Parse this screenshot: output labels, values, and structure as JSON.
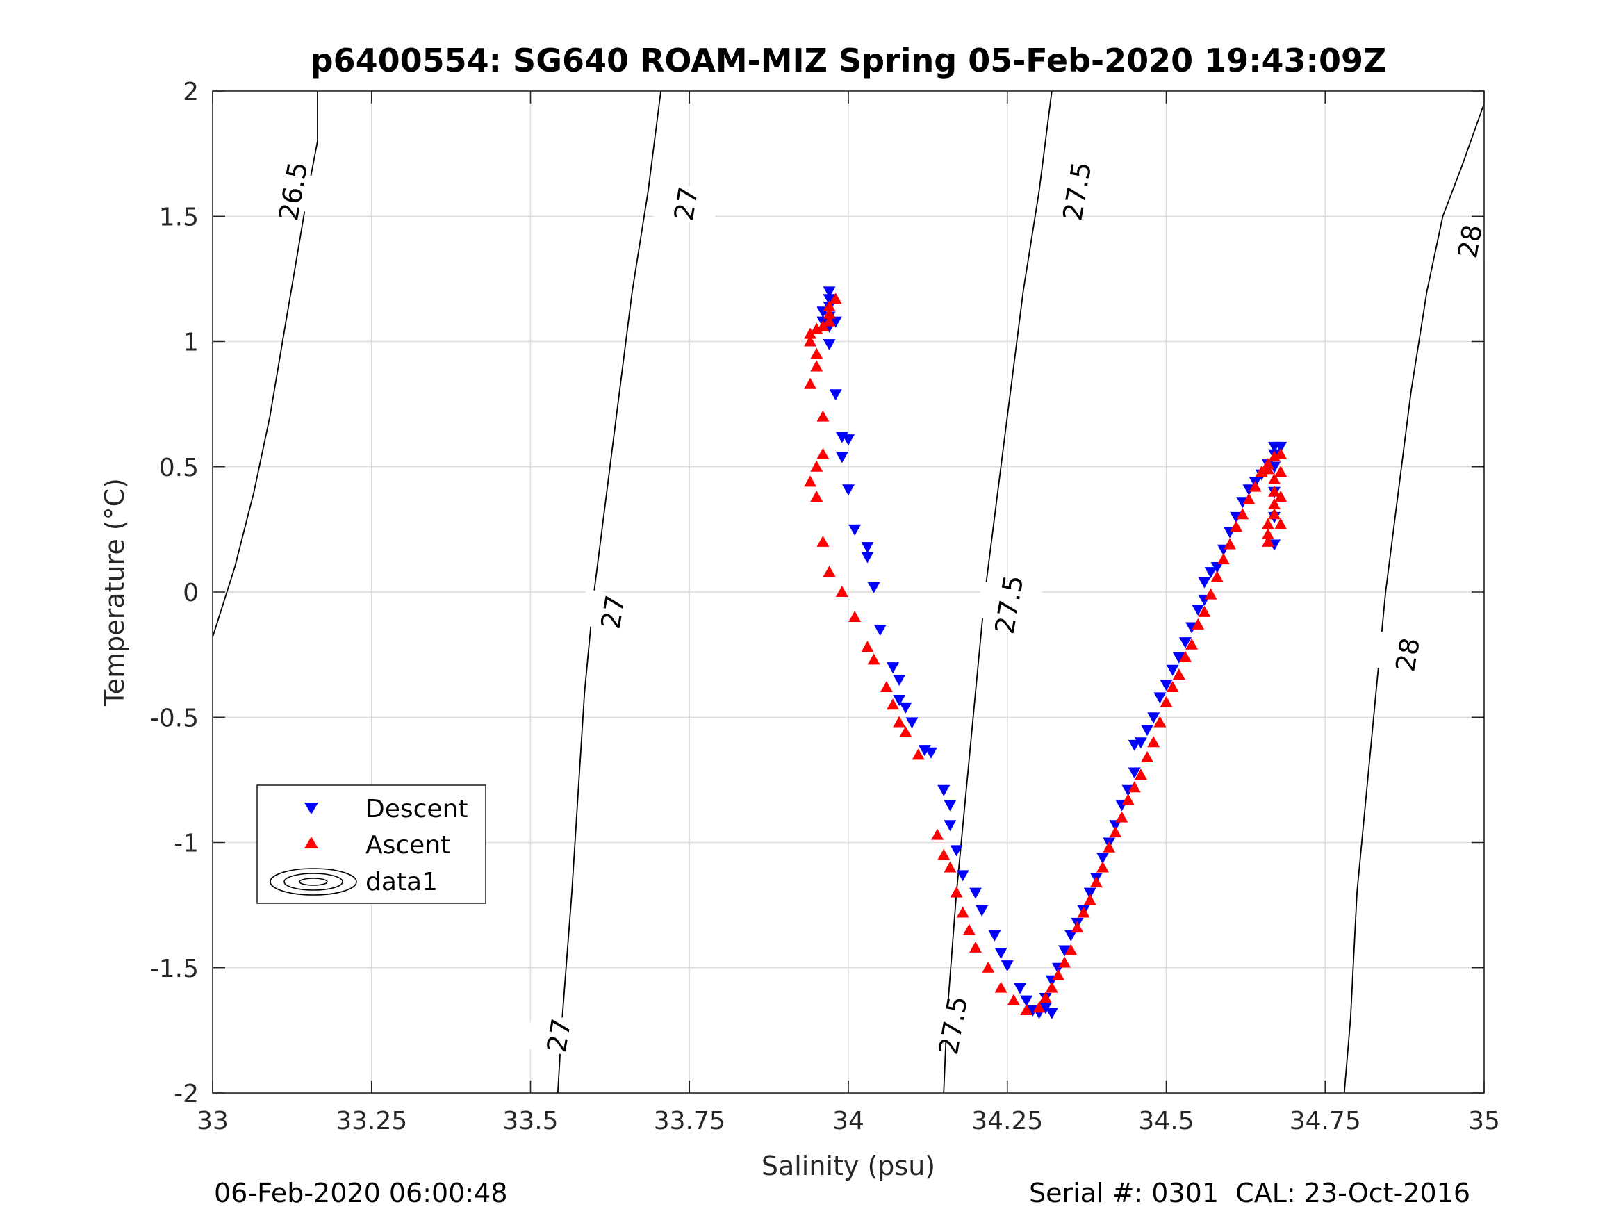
{
  "chart_data": {
    "type": "scatter",
    "title": "p6400554: SG640 ROAM-MIZ Spring 05-Feb-2020 19:43:09Z",
    "xlabel": "Salinity (psu)",
    "ylabel": "Temperature (°C)",
    "xlim": [
      33,
      35
    ],
    "ylim": [
      -2,
      2
    ],
    "x_ticks": [
      33,
      33.25,
      33.5,
      33.75,
      34,
      34.25,
      34.5,
      34.75,
      35
    ],
    "x_tick_labels": [
      "33",
      "33.25",
      "33.5",
      "33.75",
      "34",
      "34.25",
      "34.5",
      "34.75",
      "35"
    ],
    "y_ticks": [
      -2,
      -1.5,
      -1,
      -0.5,
      0,
      0.5,
      1,
      1.5,
      2
    ],
    "y_tick_labels": [
      "-2",
      "-1.5",
      "-1",
      "-0.5",
      "0",
      "0.5",
      "1",
      "1.5",
      "2"
    ],
    "grid": true,
    "legend_position": "lower-left",
    "series": [
      {
        "name": "Descent",
        "marker": "triangle-down",
        "color": "#0000ff",
        "points": [
          [
            33.97,
            1.2
          ],
          [
            33.97,
            1.17
          ],
          [
            33.97,
            1.14
          ],
          [
            33.96,
            1.12
          ],
          [
            33.97,
            1.1
          ],
          [
            33.96,
            1.08
          ],
          [
            33.97,
            1.06
          ],
          [
            33.98,
            1.08
          ],
          [
            33.97,
            0.99
          ],
          [
            33.98,
            0.79
          ],
          [
            33.99,
            0.62
          ],
          [
            34.0,
            0.61
          ],
          [
            33.99,
            0.54
          ],
          [
            34.0,
            0.41
          ],
          [
            34.01,
            0.25
          ],
          [
            34.03,
            0.18
          ],
          [
            34.03,
            0.14
          ],
          [
            34.04,
            0.02
          ],
          [
            34.05,
            -0.15
          ],
          [
            34.07,
            -0.3
          ],
          [
            34.08,
            -0.35
          ],
          [
            34.08,
            -0.43
          ],
          [
            34.09,
            -0.46
          ],
          [
            34.1,
            -0.52
          ],
          [
            34.12,
            -0.63
          ],
          [
            34.13,
            -0.64
          ],
          [
            34.15,
            -0.79
          ],
          [
            34.16,
            -0.85
          ],
          [
            34.16,
            -0.93
          ],
          [
            34.17,
            -1.03
          ],
          [
            34.18,
            -1.13
          ],
          [
            34.2,
            -1.2
          ],
          [
            34.21,
            -1.27
          ],
          [
            34.23,
            -1.37
          ],
          [
            34.24,
            -1.44
          ],
          [
            34.25,
            -1.49
          ],
          [
            34.27,
            -1.58
          ],
          [
            34.28,
            -1.63
          ],
          [
            34.29,
            -1.67
          ],
          [
            34.3,
            -1.68
          ],
          [
            34.31,
            -1.66
          ],
          [
            34.32,
            -1.68
          ],
          [
            34.31,
            -1.62
          ],
          [
            34.32,
            -1.55
          ],
          [
            34.33,
            -1.5
          ],
          [
            34.34,
            -1.43
          ],
          [
            34.35,
            -1.37
          ],
          [
            34.36,
            -1.32
          ],
          [
            34.37,
            -1.27
          ],
          [
            34.38,
            -1.2
          ],
          [
            34.39,
            -1.14
          ],
          [
            34.4,
            -1.06
          ],
          [
            34.41,
            -1.0
          ],
          [
            34.42,
            -0.93
          ],
          [
            34.43,
            -0.85
          ],
          [
            34.44,
            -0.79
          ],
          [
            34.45,
            -0.72
          ],
          [
            34.45,
            -0.61
          ],
          [
            34.46,
            -0.6
          ],
          [
            34.47,
            -0.55
          ],
          [
            34.48,
            -0.5
          ],
          [
            34.49,
            -0.42
          ],
          [
            34.5,
            -0.37
          ],
          [
            34.51,
            -0.31
          ],
          [
            34.52,
            -0.26
          ],
          [
            34.53,
            -0.2
          ],
          [
            34.54,
            -0.14
          ],
          [
            34.55,
            -0.07
          ],
          [
            34.56,
            -0.03
          ],
          [
            34.56,
            0.04
          ],
          [
            34.57,
            0.08
          ],
          [
            34.58,
            0.1
          ],
          [
            34.59,
            0.17
          ],
          [
            34.6,
            0.24
          ],
          [
            34.61,
            0.3
          ],
          [
            34.62,
            0.36
          ],
          [
            34.63,
            0.41
          ],
          [
            34.64,
            0.44
          ],
          [
            34.65,
            0.47
          ],
          [
            34.66,
            0.51
          ],
          [
            34.67,
            0.55
          ],
          [
            34.67,
            0.58
          ],
          [
            34.68,
            0.58
          ],
          [
            34.67,
            0.5
          ],
          [
            34.67,
            0.4
          ],
          [
            34.67,
            0.3
          ],
          [
            34.67,
            0.19
          ]
        ]
      },
      {
        "name": "Ascent",
        "marker": "triangle-up",
        "color": "#ff0000",
        "points": [
          [
            33.98,
            1.17
          ],
          [
            33.97,
            1.14
          ],
          [
            33.97,
            1.11
          ],
          [
            33.97,
            1.08
          ],
          [
            33.96,
            1.06
          ],
          [
            33.95,
            1.05
          ],
          [
            33.94,
            1.03
          ],
          [
            33.94,
            1.0
          ],
          [
            33.95,
            0.95
          ],
          [
            33.95,
            0.9
          ],
          [
            33.94,
            0.83
          ],
          [
            33.96,
            0.7
          ],
          [
            33.96,
            0.55
          ],
          [
            33.95,
            0.5
          ],
          [
            33.94,
            0.44
          ],
          [
            33.95,
            0.38
          ],
          [
            33.96,
            0.2
          ],
          [
            33.97,
            0.08
          ],
          [
            33.99,
            0.0
          ],
          [
            34.01,
            -0.1
          ],
          [
            34.03,
            -0.22
          ],
          [
            34.04,
            -0.27
          ],
          [
            34.06,
            -0.38
          ],
          [
            34.07,
            -0.45
          ],
          [
            34.08,
            -0.52
          ],
          [
            34.09,
            -0.56
          ],
          [
            34.11,
            -0.65
          ],
          [
            34.14,
            -0.97
          ],
          [
            34.15,
            -1.05
          ],
          [
            34.16,
            -1.1
          ],
          [
            34.17,
            -1.2
          ],
          [
            34.18,
            -1.28
          ],
          [
            34.19,
            -1.35
          ],
          [
            34.2,
            -1.42
          ],
          [
            34.22,
            -1.5
          ],
          [
            34.24,
            -1.58
          ],
          [
            34.26,
            -1.63
          ],
          [
            34.28,
            -1.67
          ],
          [
            34.3,
            -1.66
          ],
          [
            34.31,
            -1.62
          ],
          [
            34.32,
            -1.58
          ],
          [
            34.33,
            -1.53
          ],
          [
            34.34,
            -1.48
          ],
          [
            34.35,
            -1.43
          ],
          [
            34.36,
            -1.34
          ],
          [
            34.37,
            -1.28
          ],
          [
            34.38,
            -1.23
          ],
          [
            34.39,
            -1.16
          ],
          [
            34.4,
            -1.1
          ],
          [
            34.41,
            -1.02
          ],
          [
            34.42,
            -0.96
          ],
          [
            34.43,
            -0.9
          ],
          [
            34.44,
            -0.83
          ],
          [
            34.45,
            -0.78
          ],
          [
            34.46,
            -0.73
          ],
          [
            34.47,
            -0.66
          ],
          [
            34.48,
            -0.6
          ],
          [
            34.49,
            -0.52
          ],
          [
            34.5,
            -0.44
          ],
          [
            34.51,
            -0.38
          ],
          [
            34.52,
            -0.33
          ],
          [
            34.53,
            -0.26
          ],
          [
            34.54,
            -0.21
          ],
          [
            34.55,
            -0.13
          ],
          [
            34.56,
            -0.08
          ],
          [
            34.57,
            -0.01
          ],
          [
            34.58,
            0.06
          ],
          [
            34.59,
            0.13
          ],
          [
            34.6,
            0.19
          ],
          [
            34.61,
            0.26
          ],
          [
            34.62,
            0.31
          ],
          [
            34.63,
            0.37
          ],
          [
            34.64,
            0.42
          ],
          [
            34.65,
            0.48
          ],
          [
            34.66,
            0.51
          ],
          [
            34.67,
            0.54
          ],
          [
            34.66,
            0.49
          ],
          [
            34.67,
            0.45
          ],
          [
            34.67,
            0.4
          ],
          [
            34.67,
            0.35
          ],
          [
            34.67,
            0.31
          ],
          [
            34.66,
            0.27
          ],
          [
            34.66,
            0.23
          ],
          [
            34.66,
            0.2
          ],
          [
            34.68,
            0.27
          ],
          [
            34.68,
            0.38
          ],
          [
            34.68,
            0.48
          ],
          [
            34.68,
            0.55
          ]
        ]
      }
    ],
    "contours": {
      "legend_label": "data1",
      "lines": [
        {
          "level": 26.5,
          "points": [
            [
              33.0,
              -0.18
            ],
            [
              33.035,
              0.1
            ],
            [
              33.065,
              0.4
            ],
            [
              33.09,
              0.7
            ],
            [
              33.11,
              1.0
            ],
            [
              33.13,
              1.3
            ],
            [
              33.15,
              1.6
            ],
            [
              33.165,
              1.8
            ],
            [
              33.165,
              2.0
            ]
          ],
          "labels": [
            {
              "text": "26.5",
              "x": 33.127,
              "y": 1.6
            }
          ]
        },
        {
          "level": 27,
          "points": [
            [
              33.543,
              -2.0
            ],
            [
              33.55,
              -1.7
            ],
            [
              33.565,
              -1.2
            ],
            [
              33.575,
              -0.8
            ],
            [
              33.585,
              -0.4
            ],
            [
              33.6,
              0.0
            ],
            [
              33.62,
              0.4
            ],
            [
              33.64,
              0.8
            ],
            [
              33.66,
              1.2
            ],
            [
              33.685,
              1.6
            ],
            [
              33.705,
              2.0
            ]
          ],
          "labels": [
            {
              "text": "27",
              "x": 33.545,
              "y": -1.77
            },
            {
              "text": "27",
              "x": 33.63,
              "y": -0.08
            },
            {
              "text": "27",
              "x": 33.745,
              "y": 1.55
            }
          ]
        },
        {
          "level": 27.5,
          "points": [
            [
              34.15,
              -2.0
            ],
            [
              34.155,
              -1.7
            ],
            [
              34.17,
              -1.2
            ],
            [
              34.185,
              -0.8
            ],
            [
              34.2,
              -0.4
            ],
            [
              34.215,
              0.0
            ],
            [
              34.235,
              0.4
            ],
            [
              34.255,
              0.8
            ],
            [
              34.275,
              1.2
            ],
            [
              34.3,
              1.6
            ],
            [
              34.32,
              2.0
            ]
          ],
          "labels": [
            {
              "text": "27.5",
              "x": 34.165,
              "y": -1.73
            },
            {
              "text": "27.5",
              "x": 34.253,
              "y": -0.05
            },
            {
              "text": "27.5",
              "x": 34.36,
              "y": 1.6
            }
          ]
        },
        {
          "level": 28,
          "points": [
            [
              34.78,
              -2.0
            ],
            [
              34.79,
              -1.7
            ],
            [
              34.8,
              -1.2
            ],
            [
              34.815,
              -0.8
            ],
            [
              34.83,
              -0.4
            ],
            [
              34.845,
              0.0
            ],
            [
              34.865,
              0.4
            ],
            [
              34.885,
              0.8
            ],
            [
              34.91,
              1.2
            ],
            [
              34.935,
              1.5
            ],
            [
              34.965,
              1.7
            ],
            [
              35.0,
              1.95
            ]
          ],
          "labels": [
            {
              "text": "28",
              "x": 34.88,
              "y": -0.25
            },
            {
              "text": "28",
              "x": 34.978,
              "y": 1.4
            }
          ]
        }
      ]
    }
  },
  "footer": {
    "left": "06-Feb-2020 06:00:48",
    "right": "Serial #: 0301  CAL: 23-Oct-2016"
  }
}
